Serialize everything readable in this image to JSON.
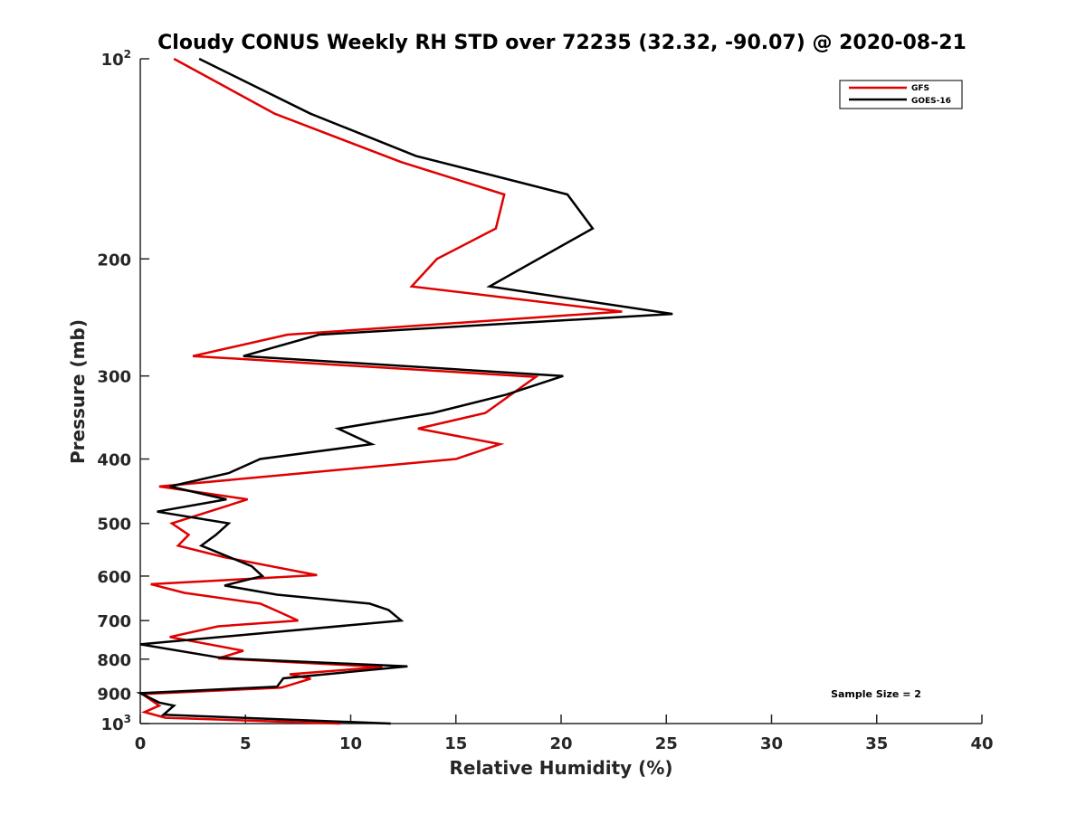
{
  "chart_data": {
    "type": "line",
    "title": "Cloudy CONUS Weekly RH STD over 72235 (32.32, -90.07) @ 2020-08-21",
    "xlabel": "Relative Humidity (%)",
    "ylabel": "Pressure (mb)",
    "xlim": [
      0,
      40
    ],
    "ylim": [
      100,
      1000
    ],
    "yscale": "log",
    "yreversed": true,
    "grid": false,
    "x_ticks": [
      0,
      5,
      10,
      15,
      20,
      25,
      30,
      35,
      40
    ],
    "x_tick_labels": [
      "0",
      "5",
      "10",
      "15",
      "20",
      "25",
      "30",
      "35",
      "40"
    ],
    "y_ticks": [
      100,
      200,
      300,
      400,
      500,
      600,
      700,
      800,
      900,
      1000
    ],
    "y_tick_labels": [
      {
        "base": "10",
        "exp": "2"
      },
      {
        "base": "200"
      },
      {
        "base": "300"
      },
      {
        "base": "400"
      },
      {
        "base": "500"
      },
      {
        "base": "600"
      },
      {
        "base": "700"
      },
      {
        "base": "800"
      },
      {
        "base": "900"
      },
      {
        "base": "10",
        "exp": "3"
      }
    ],
    "legend_position": "top-right",
    "annotation": "Sample Size = 2",
    "series": [
      {
        "name": "GFS",
        "color": "#e00000",
        "points": [
          [
            1.6,
            100
          ],
          [
            6.4,
            121
          ],
          [
            12.4,
            143
          ],
          [
            17.3,
            160
          ],
          [
            16.9,
            180
          ],
          [
            14.1,
            200
          ],
          [
            12.9,
            220
          ],
          [
            22.9,
            240
          ],
          [
            7.0,
            260
          ],
          [
            2.5,
            280
          ],
          [
            18.8,
            301
          ],
          [
            16.4,
            341
          ],
          [
            13.2,
            360
          ],
          [
            17.1,
            380
          ],
          [
            15.0,
            400
          ],
          [
            0.9,
            440
          ],
          [
            5.1,
            460
          ],
          [
            1.5,
            500
          ],
          [
            2.3,
            520
          ],
          [
            1.8,
            540
          ],
          [
            4.0,
            562
          ],
          [
            8.4,
            598
          ],
          [
            0.5,
            617
          ],
          [
            2.1,
            636
          ],
          [
            5.7,
            660
          ],
          [
            6.4,
            675
          ],
          [
            7.5,
            700
          ],
          [
            3.7,
            714
          ],
          [
            1.4,
            741
          ],
          [
            4.9,
            777
          ],
          [
            3.7,
            798
          ],
          [
            11.5,
            822
          ],
          [
            7.1,
            843
          ],
          [
            8.1,
            856
          ],
          [
            6.7,
            883
          ],
          [
            0.1,
            903
          ],
          [
            0.9,
            940
          ],
          [
            0.2,
            961
          ],
          [
            1.2,
            980
          ],
          [
            9.5,
            1000
          ]
        ]
      },
      {
        "name": "GOES-16",
        "color": "#000000",
        "points": [
          [
            2.8,
            100
          ],
          [
            8.1,
            121
          ],
          [
            13.1,
            140
          ],
          [
            20.3,
            160
          ],
          [
            21.5,
            180
          ],
          [
            16.6,
            220
          ],
          [
            25.3,
            242
          ],
          [
            8.5,
            260
          ],
          [
            4.9,
            280
          ],
          [
            20.1,
            300
          ],
          [
            17.4,
            320
          ],
          [
            13.9,
            341
          ],
          [
            9.4,
            360
          ],
          [
            11.0,
            380
          ],
          [
            5.7,
            400
          ],
          [
            4.2,
            420
          ],
          [
            1.4,
            440
          ],
          [
            4.1,
            460
          ],
          [
            0.8,
            480
          ],
          [
            4.2,
            500
          ],
          [
            3.6,
            520
          ],
          [
            2.9,
            540
          ],
          [
            5.3,
            580
          ],
          [
            5.8,
            600
          ],
          [
            4.0,
            620
          ],
          [
            6.5,
            640
          ],
          [
            10.9,
            660
          ],
          [
            11.8,
            675
          ],
          [
            12.4,
            700
          ],
          [
            0.0,
            760
          ],
          [
            3.7,
            795
          ],
          [
            4.9,
            800
          ],
          [
            12.7,
            820
          ],
          [
            6.8,
            855
          ],
          [
            6.5,
            880
          ],
          [
            0.0,
            900
          ],
          [
            0.9,
            930
          ],
          [
            1.6,
            940
          ],
          [
            1.1,
            970
          ],
          [
            11.9,
            1000
          ]
        ]
      }
    ]
  }
}
